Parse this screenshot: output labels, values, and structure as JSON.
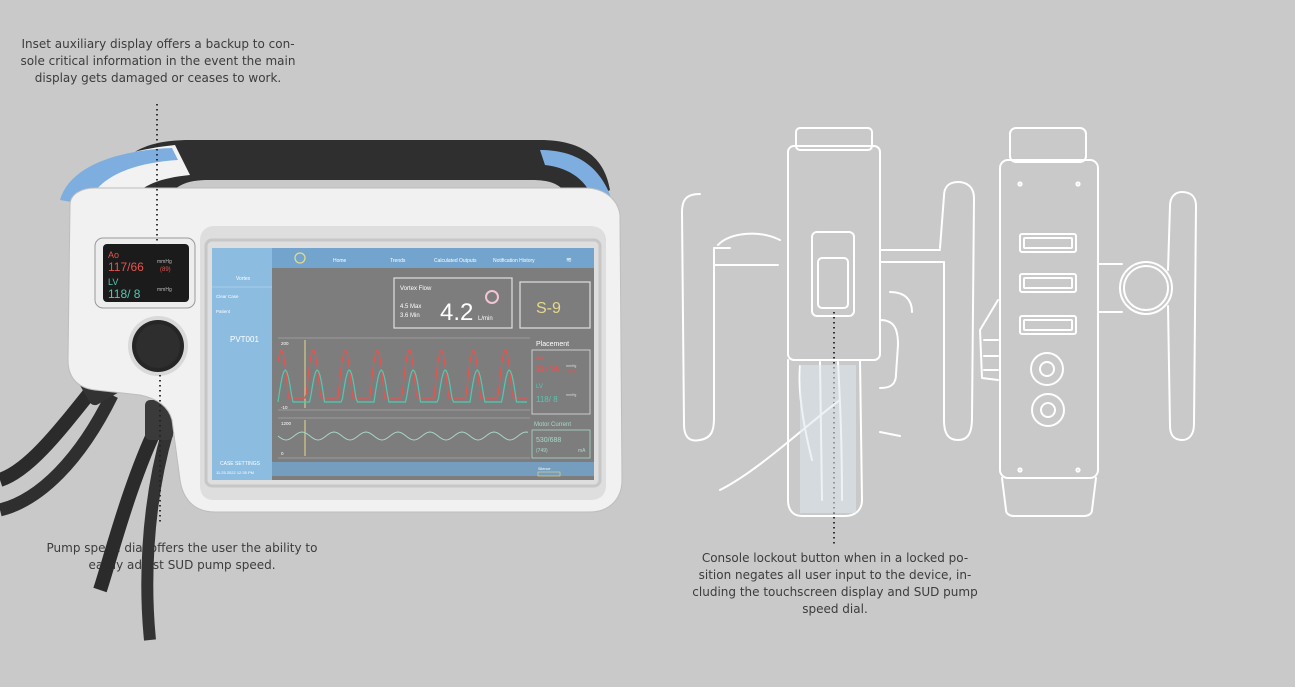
{
  "captions": {
    "aux_display": [
      "Inset auxiliary display offers a backup to con-",
      "sole critical information in the event the main",
      "display gets damaged or ceases to work."
    ],
    "pump_dial": [
      "Pump speed dial offers the user the ability to",
      "easily adjust SUD pump speed."
    ],
    "lockout": [
      "Console lockout button when in a locked po-",
      "sition negates all user input to the device, in-",
      "cluding the touchscreen display and SUD pump",
      "speed dial."
    ]
  },
  "aux_display": {
    "ao_label": "Ao",
    "ao_value": "117/66",
    "ao_unit": "mmHg",
    "ao_mean": "(89)",
    "lv_label": "LV",
    "lv_value": "118/ 8",
    "lv_unit": "mmHg"
  },
  "screen": {
    "tabs": [
      "Home",
      "Trends",
      "Calculated Outputs",
      "Notification History"
    ],
    "sidebar": {
      "title": "Vortex",
      "items": [
        "Clear Case",
        "Patient"
      ],
      "patient_id": "PVT001",
      "case_settings": "CASE SETTINGS",
      "timestamp": "11.25.2022 12:35 PM"
    },
    "flow": {
      "title": "Vortex Flow",
      "max": "4.5 Max",
      "min": "3.6 Min",
      "value": "4.2",
      "unit": "L/min"
    },
    "speed": "S-9",
    "placement": {
      "title": "Placement",
      "ao_label": "Ao",
      "ao_value": "117/66",
      "ao_unit": "mmHg",
      "ao_mean": "(89)",
      "lv_label": "LV",
      "lv_value": "118/ 8",
      "lv_unit": "mmHg"
    },
    "motor": {
      "title": "Motor Current",
      "value": "530/688",
      "sub": "(749)",
      "unit": "mA"
    },
    "chart_top": {
      "ymax": "200",
      "ymin": "-10"
    },
    "chart_bottom": {
      "ymax": "1200",
      "ymin": "0"
    },
    "footer_label": "Silence"
  },
  "colors": {
    "background": "#c9c9c9",
    "device_shell": "#f1f1f1",
    "accent_blue": "#7eaee0",
    "screen_blue": "#8fc3ec",
    "ao_red": "#e8534f",
    "lv_teal": "#55c8b0",
    "speed_yellow": "#e6d98a"
  }
}
